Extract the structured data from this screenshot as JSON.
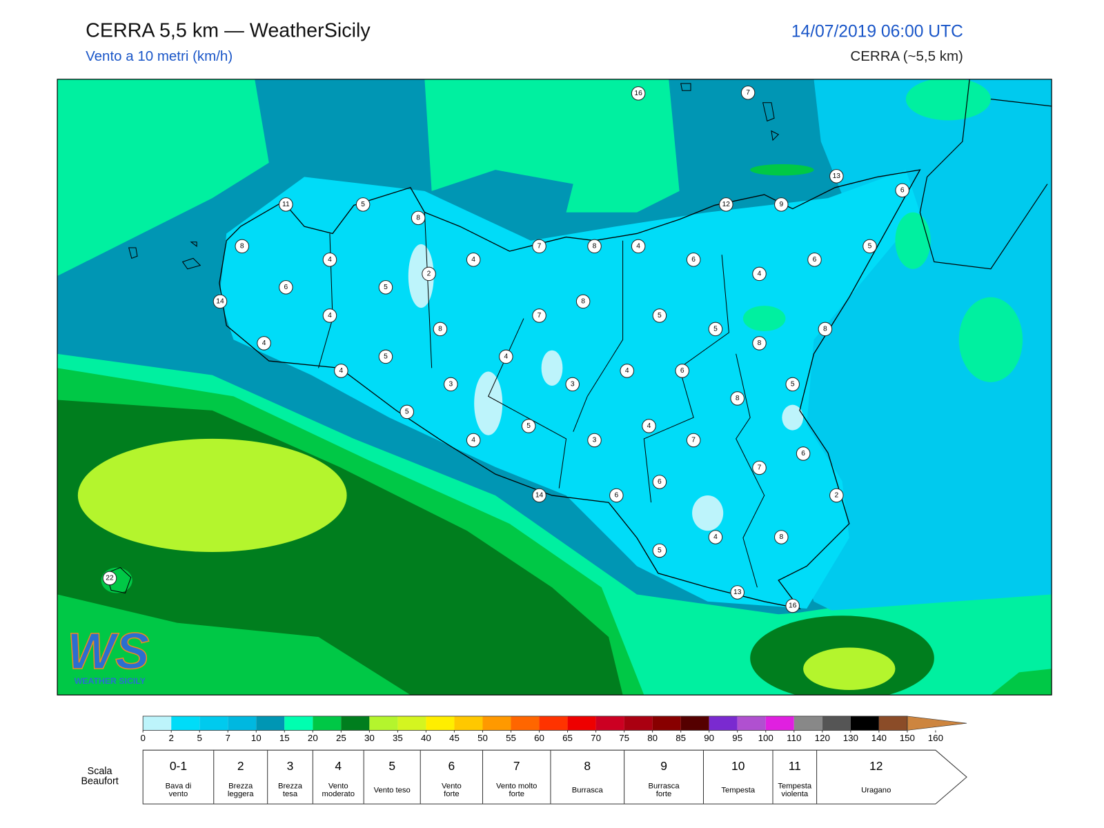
{
  "header": {
    "title": "CERRA 5,5 km — WeatherSicily",
    "subtitle": "Vento a 10 metri (km/h)",
    "datetime": "14/07/2019 06:00 UTC",
    "model": "CERRA (~5,5 km)"
  },
  "stations": [
    16,
    7,
    13,
    6,
    11,
    5,
    12,
    9,
    8,
    8,
    7,
    8,
    4,
    5,
    4,
    4,
    6,
    6,
    2,
    4,
    6,
    5,
    14,
    8,
    4,
    7,
    5,
    5,
    8,
    8,
    4,
    8,
    5,
    4,
    4,
    4,
    6,
    3,
    3,
    5,
    8,
    5,
    4,
    5,
    4,
    3,
    7,
    6,
    7,
    6,
    14,
    6,
    2,
    4,
    8,
    5,
    13,
    16,
    22
  ],
  "colorbar": {
    "ticks": [
      0,
      2,
      5,
      7,
      10,
      15,
      20,
      25,
      30,
      35,
      40,
      45,
      50,
      55,
      60,
      65,
      70,
      75,
      80,
      85,
      90,
      95,
      100,
      110,
      120,
      130,
      140,
      150,
      160
    ],
    "colors": [
      "#bdf4fb",
      "#00dcf8",
      "#00caee",
      "#00b8e0",
      "#0096b4",
      "#00ffb0",
      "#00c846",
      "#007e1e",
      "#b4f52d",
      "#d4f520",
      "#ffee00",
      "#ffc800",
      "#ff9900",
      "#ff6600",
      "#ff3300",
      "#ee0000",
      "#cc0022",
      "#aa0011",
      "#880000",
      "#550000",
      "#7a2ad0",
      "#b050d0",
      "#e020e0",
      "#888888",
      "#555555",
      "#000000",
      "#8b4c28",
      "#cd853f"
    ]
  },
  "beaufort": {
    "label": [
      "Scala",
      "Beaufort"
    ],
    "levels": [
      {
        "force": "0-1",
        "desc": [
          "Bava di",
          "vento"
        ]
      },
      {
        "force": "2",
        "desc": [
          "Brezza",
          "leggera"
        ]
      },
      {
        "force": "3",
        "desc": [
          "Brezza",
          "tesa"
        ]
      },
      {
        "force": "4",
        "desc": [
          "Vento",
          "moderato"
        ]
      },
      {
        "force": "5",
        "desc": [
          "Vento teso"
        ]
      },
      {
        "force": "6",
        "desc": [
          "Vento",
          "forte"
        ]
      },
      {
        "force": "7",
        "desc": [
          "Vento molto",
          "forte"
        ]
      },
      {
        "force": "8",
        "desc": [
          "Burrasca"
        ]
      },
      {
        "force": "9",
        "desc": [
          "Burrasca",
          "forte"
        ]
      },
      {
        "force": "10",
        "desc": [
          "Tempesta"
        ]
      },
      {
        "force": "11",
        "desc": [
          "Tempesta",
          "violenta"
        ]
      },
      {
        "force": "12",
        "desc": [
          "Uragano"
        ]
      }
    ]
  },
  "logo": {
    "mark": "WS",
    "name": "WEATHER SICILY"
  }
}
